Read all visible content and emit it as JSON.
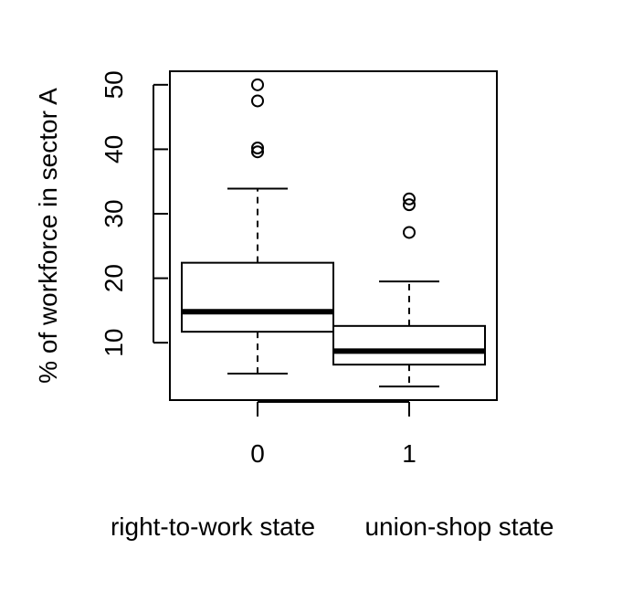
{
  "chart_data": {
    "type": "box",
    "title": "",
    "xlabel": "",
    "ylabel": "% of workforce in sector A",
    "ylim": [
      1.1,
      52.1
    ],
    "yticks": [
      10,
      20,
      30,
      40,
      50
    ],
    "ytick_labels": [
      "10",
      "20",
      "30",
      "40",
      "50"
    ],
    "categories": [
      "0",
      "1"
    ],
    "category_descriptions": [
      "right-to-work state",
      "union-shop state"
    ],
    "boxes": [
      {
        "category": "0",
        "whisker_low": 5.2,
        "q1": 11.7,
        "median": 14.8,
        "q3": 22.4,
        "whisker_high": 33.9,
        "outliers": [
          39.6,
          40.2,
          47.5,
          50.0
        ]
      },
      {
        "category": "1",
        "whisker_low": 3.2,
        "q1": 6.6,
        "median": 8.7,
        "q3": 12.6,
        "whisker_high": 19.5,
        "outliers": [
          27.1,
          31.4,
          32.3
        ]
      }
    ],
    "grid": false,
    "legend": "none"
  }
}
